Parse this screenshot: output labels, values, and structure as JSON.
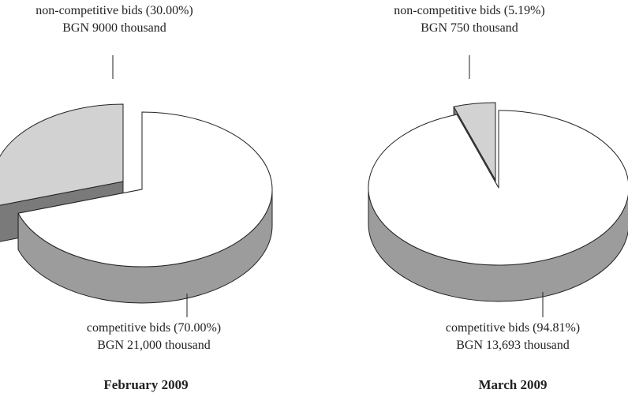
{
  "chart_data": [
    {
      "type": "pie",
      "title": "February 2009",
      "categories": [
        "non-competitive bids",
        "competitive bids"
      ],
      "values": [
        30.0,
        70.0
      ],
      "value_labels": [
        "(30.00%)",
        "(70.00%)"
      ],
      "amount_labels": [
        "BGN 9000 thousand",
        "BGN 21,000 thousand"
      ],
      "colors": [
        "#d2d2d2",
        "#ffffff"
      ],
      "side_color": "#9c9c9c"
    },
    {
      "type": "pie",
      "title": "March 2009",
      "categories": [
        "non-competitive bids",
        "competitive bids"
      ],
      "values": [
        5.19,
        94.81
      ],
      "value_labels": [
        "(5.19%)",
        "(94.81%)"
      ],
      "amount_labels": [
        "BGN 750 thousand",
        "BGN 13,693 thousand"
      ],
      "colors": [
        "#d2d2d2",
        "#ffffff"
      ],
      "side_color": "#9c9c9c"
    }
  ]
}
